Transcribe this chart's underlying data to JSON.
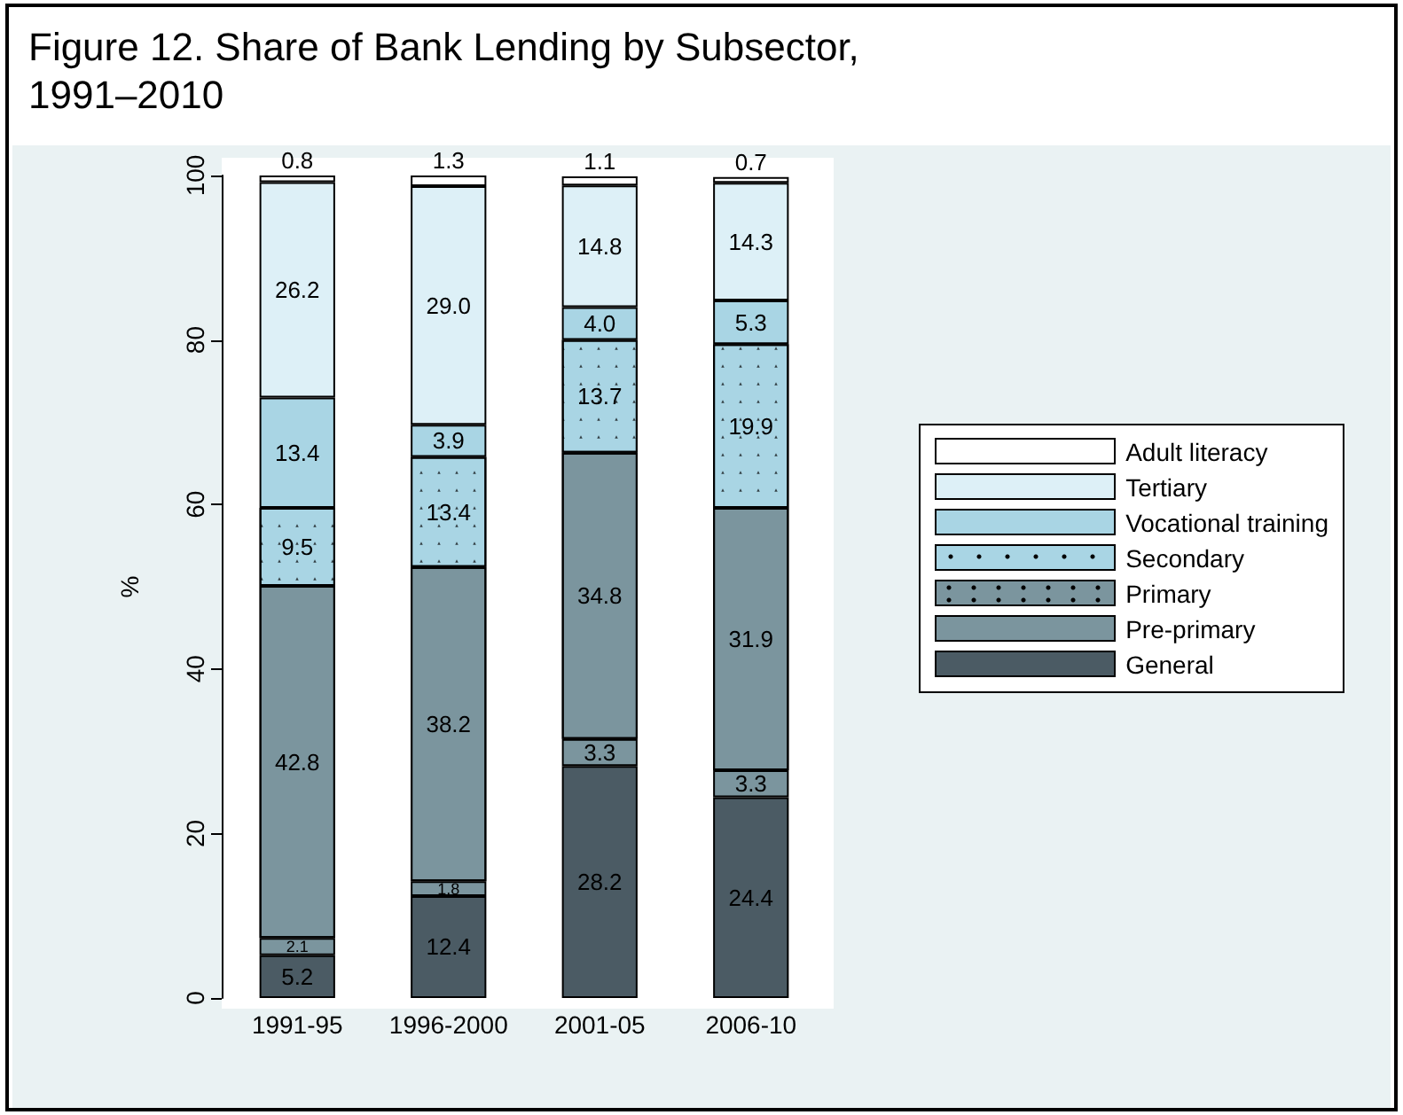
{
  "chart_data": {
    "type": "bar",
    "title": "Figure 12. Share of Bank Lending by Subsector,\n1991–2010",
    "ylabel": "%",
    "categories": [
      "1991-95",
      "1996-2000",
      "2001-05",
      "2006-10"
    ],
    "stacked": true,
    "legend": "right",
    "grid": false,
    "ylim": [
      0,
      100
    ],
    "yticks": [
      0,
      20,
      40,
      60,
      80,
      100
    ],
    "series": [
      {
        "name": "General",
        "color": "#4b5b64",
        "values": [
          5.2,
          12.4,
          28.2,
          24.4
        ],
        "value_labels": [
          "5.2",
          "12.4",
          "28.2",
          "24.4"
        ]
      },
      {
        "name": "Pre-primary",
        "color": "#7b959e",
        "values": [
          2.1,
          1.8,
          3.3,
          3.3
        ],
        "value_labels": [
          "2.1",
          "1.8",
          "3.3",
          "3.3"
        ]
      },
      {
        "name": "Primary",
        "color": "#7b959e",
        "marker": "cross",
        "values": [
          42.8,
          38.2,
          34.8,
          31.9
        ],
        "value_labels": [
          "42.8",
          "38.2",
          "34.8",
          "31.9"
        ]
      },
      {
        "name": "Secondary",
        "color": "#a9d5e4",
        "marker": "triangle",
        "values": [
          9.5,
          13.4,
          13.7,
          19.9
        ],
        "value_labels": [
          "9.5",
          "13.4",
          "13.7",
          "19.9"
        ]
      },
      {
        "name": "Vocational training",
        "color": "#a9d5e4",
        "values": [
          13.4,
          3.9,
          4.0,
          5.3
        ],
        "value_labels": [
          "13.4",
          "3.9",
          "4.0",
          "5.3"
        ]
      },
      {
        "name": "Tertiary",
        "color": "#ddf0f7",
        "values": [
          26.2,
          29.0,
          14.8,
          14.3
        ],
        "value_labels": [
          "26.2",
          "29.0",
          "14.8",
          "14.3"
        ]
      },
      {
        "name": "Adult literacy",
        "color": "#ffffff",
        "values": [
          0.8,
          1.3,
          1.1,
          0.7
        ],
        "value_labels": [
          "0.8",
          "1.3",
          "1.1",
          "0.7"
        ]
      }
    ]
  }
}
